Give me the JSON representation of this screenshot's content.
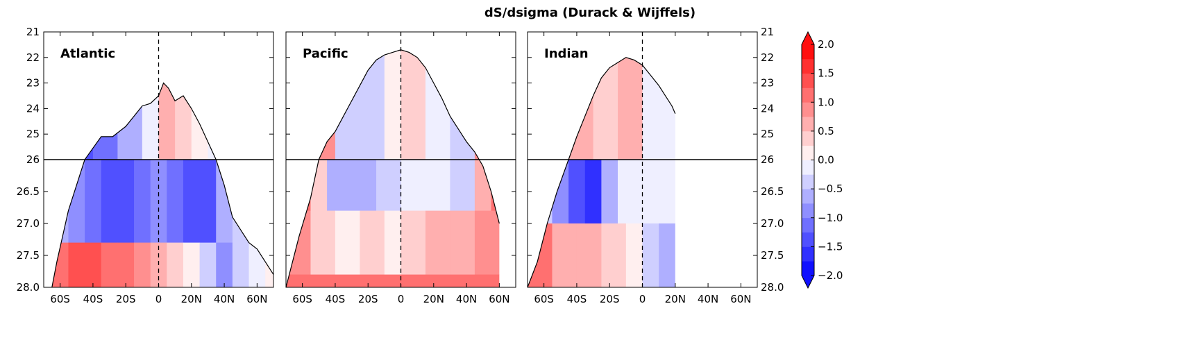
{
  "title": "dS/dsigma (Durack & Wijffels)",
  "chart_data": {
    "type": "filled-contour",
    "title": "dS/dsigma (Durack & Wijffels)",
    "x_ticks": [
      "60S",
      "40S",
      "20S",
      "0",
      "20N",
      "40N",
      "60N"
    ],
    "x_values": [
      -60,
      -40,
      -20,
      0,
      20,
      40,
      60
    ],
    "xlim": [
      -70,
      70
    ],
    "y_ticks_upper": [
      "21",
      "22",
      "23",
      "24",
      "25",
      "26"
    ],
    "y_ticks_lower": [
      "26.5",
      "27.0",
      "27.5",
      "28.0"
    ],
    "ylim_upper": [
      21,
      26
    ],
    "ylim_lower": [
      26,
      28
    ],
    "split_line_at": 26,
    "zero_line_at": 0,
    "panels": [
      {
        "name": "Atlantic",
        "surface": [
          [
            -65,
            28.0
          ],
          [
            -62,
            27.6
          ],
          [
            -55,
            26.8
          ],
          [
            -45,
            26.0
          ],
          [
            -35,
            25.1
          ],
          [
            -28,
            25.1
          ],
          [
            -20,
            24.7
          ],
          [
            -10,
            23.9
          ],
          [
            -5,
            23.8
          ],
          [
            0,
            23.5
          ],
          [
            3,
            23.0
          ],
          [
            6,
            23.2
          ],
          [
            10,
            23.7
          ],
          [
            15,
            23.5
          ],
          [
            20,
            24.0
          ],
          [
            25,
            24.6
          ],
          [
            30,
            25.3
          ],
          [
            35,
            26.0
          ],
          [
            40,
            26.4
          ],
          [
            45,
            26.9
          ],
          [
            50,
            27.1
          ],
          [
            55,
            27.3
          ],
          [
            60,
            27.4
          ],
          [
            65,
            27.6
          ],
          [
            70,
            27.8
          ]
        ],
        "cells": [
          [
            -65,
            -55,
            26.0,
            27.3,
            -0.7
          ],
          [
            -55,
            -45,
            26.0,
            27.3,
            -1.0
          ],
          [
            -45,
            -35,
            26.0,
            27.3,
            -1.2
          ],
          [
            -35,
            -25,
            26.0,
            27.3,
            -1.4
          ],
          [
            -25,
            -15,
            26.0,
            27.3,
            -1.3
          ],
          [
            -15,
            -5,
            26.0,
            27.3,
            -1.1
          ],
          [
            -5,
            5,
            26.0,
            27.3,
            -0.9
          ],
          [
            5,
            15,
            26.0,
            27.3,
            -1.1
          ],
          [
            15,
            25,
            26.0,
            27.3,
            -1.4
          ],
          [
            25,
            35,
            26.0,
            27.3,
            -1.3
          ],
          [
            35,
            45,
            26.0,
            27.3,
            -0.7
          ],
          [
            45,
            55,
            26.0,
            27.3,
            -0.3
          ],
          [
            55,
            65,
            26.0,
            27.3,
            -0.1
          ],
          [
            65,
            70,
            26.0,
            27.3,
            -0.1
          ],
          [
            -65,
            -55,
            27.3,
            28.0,
            1.0
          ],
          [
            -55,
            -45,
            27.3,
            28.0,
            1.4
          ],
          [
            -45,
            -35,
            27.3,
            28.0,
            1.3
          ],
          [
            -35,
            -25,
            27.3,
            28.0,
            1.2
          ],
          [
            -25,
            -15,
            27.3,
            28.0,
            1.0
          ],
          [
            -15,
            -5,
            27.3,
            28.0,
            0.9
          ],
          [
            -5,
            5,
            27.3,
            28.0,
            0.6
          ],
          [
            5,
            15,
            27.3,
            28.0,
            0.3
          ],
          [
            15,
            25,
            27.3,
            28.0,
            0.1
          ],
          [
            25,
            35,
            27.3,
            28.0,
            -0.4
          ],
          [
            35,
            45,
            27.3,
            28.0,
            -0.8
          ],
          [
            45,
            55,
            27.3,
            28.0,
            -0.4
          ],
          [
            55,
            65,
            27.3,
            28.0,
            -0.1
          ],
          [
            65,
            70,
            27.3,
            28.0,
            0.2
          ],
          [
            -65,
            -40,
            21,
            26.0,
            -1.3
          ],
          [
            -40,
            -25,
            21,
            26.0,
            -1.1
          ],
          [
            -25,
            -10,
            21,
            26.0,
            -0.7
          ],
          [
            -10,
            0,
            21,
            26.0,
            -0.2
          ],
          [
            0,
            10,
            21,
            26.0,
            0.5
          ],
          [
            10,
            20,
            21,
            26.0,
            0.3
          ],
          [
            20,
            30,
            21,
            26.0,
            0.1
          ],
          [
            30,
            40,
            21,
            26.0,
            -0.1
          ],
          [
            40,
            70,
            21,
            26.0,
            -0.1
          ]
        ]
      },
      {
        "name": "Pacific",
        "surface": [
          [
            -70,
            28.0
          ],
          [
            -62,
            27.2
          ],
          [
            -55,
            26.6
          ],
          [
            -50,
            26.0
          ],
          [
            -45,
            25.3
          ],
          [
            -40,
            24.9
          ],
          [
            -35,
            24.3
          ],
          [
            -30,
            23.7
          ],
          [
            -25,
            23.1
          ],
          [
            -20,
            22.5
          ],
          [
            -15,
            22.1
          ],
          [
            -10,
            21.9
          ],
          [
            -5,
            21.8
          ],
          [
            0,
            21.7
          ],
          [
            5,
            21.8
          ],
          [
            10,
            22.0
          ],
          [
            15,
            22.4
          ],
          [
            20,
            23.0
          ],
          [
            25,
            23.6
          ],
          [
            30,
            24.3
          ],
          [
            35,
            24.8
          ],
          [
            40,
            25.3
          ],
          [
            45,
            25.7
          ],
          [
            50,
            26.1
          ],
          [
            55,
            26.5
          ],
          [
            58,
            26.8
          ],
          [
            60,
            27.0
          ]
        ],
        "cells": [
          [
            -70,
            -55,
            26.0,
            26.8,
            1.2
          ],
          [
            -55,
            -45,
            26.0,
            26.8,
            0.4
          ],
          [
            -45,
            -30,
            26.0,
            26.8,
            -0.6
          ],
          [
            -30,
            -15,
            26.0,
            26.8,
            -0.7
          ],
          [
            -15,
            0,
            26.0,
            26.8,
            -0.3
          ],
          [
            0,
            15,
            26.0,
            26.8,
            -0.1
          ],
          [
            15,
            30,
            26.0,
            26.8,
            -0.2
          ],
          [
            30,
            45,
            26.0,
            26.8,
            -0.4
          ],
          [
            45,
            55,
            26.0,
            26.8,
            0.6
          ],
          [
            55,
            60,
            26.0,
            26.8,
            1.0
          ],
          [
            -70,
            -55,
            26.8,
            27.8,
            0.9
          ],
          [
            -55,
            -40,
            26.8,
            27.8,
            0.4
          ],
          [
            -40,
            -25,
            26.8,
            27.8,
            0.2
          ],
          [
            -25,
            -10,
            26.8,
            27.8,
            0.3
          ],
          [
            -10,
            0,
            26.8,
            27.8,
            0.2
          ],
          [
            0,
            15,
            26.8,
            27.8,
            0.3
          ],
          [
            15,
            30,
            26.8,
            27.8,
            0.6
          ],
          [
            30,
            45,
            26.8,
            27.8,
            0.7
          ],
          [
            45,
            60,
            26.8,
            27.8,
            0.8
          ],
          [
            -70,
            60,
            27.8,
            28.0,
            1.2
          ],
          [
            -70,
            -40,
            21,
            26.0,
            0.8
          ],
          [
            -40,
            -25,
            21,
            26.0,
            -0.5
          ],
          [
            -25,
            -10,
            21,
            26.0,
            -0.3
          ],
          [
            -10,
            0,
            21,
            26.0,
            0.2
          ],
          [
            0,
            15,
            21,
            26.0,
            0.3
          ],
          [
            15,
            30,
            21,
            26.0,
            -0.1
          ],
          [
            30,
            45,
            21,
            26.0,
            -0.4
          ],
          [
            45,
            60,
            21,
            26.0,
            0.9
          ]
        ]
      },
      {
        "name": "Indian",
        "surface": [
          [
            -70,
            28.0
          ],
          [
            -64,
            27.6
          ],
          [
            -58,
            27.0
          ],
          [
            -52,
            26.5
          ],
          [
            -45,
            26.0
          ],
          [
            -40,
            25.1
          ],
          [
            -35,
            24.3
          ],
          [
            -30,
            23.5
          ],
          [
            -25,
            22.8
          ],
          [
            -20,
            22.4
          ],
          [
            -15,
            22.2
          ],
          [
            -10,
            22.0
          ],
          [
            -5,
            22.1
          ],
          [
            0,
            22.3
          ],
          [
            5,
            22.7
          ],
          [
            10,
            23.1
          ],
          [
            15,
            23.6
          ],
          [
            18,
            23.9
          ],
          [
            20,
            24.2
          ]
        ],
        "cells": [
          [
            -70,
            -55,
            26.0,
            27.0,
            -0.3
          ],
          [
            -55,
            -45,
            26.0,
            27.0,
            -0.9
          ],
          [
            -45,
            -35,
            26.0,
            27.0,
            -1.3
          ],
          [
            -35,
            -25,
            26.0,
            27.0,
            -1.6
          ],
          [
            -25,
            -15,
            26.0,
            27.0,
            -0.6
          ],
          [
            -15,
            -5,
            26.0,
            27.0,
            -0.2
          ],
          [
            -5,
            5,
            26.0,
            27.0,
            -0.1
          ],
          [
            5,
            20,
            26.0,
            27.0,
            -0.2
          ],
          [
            -70,
            -55,
            27.0,
            28.0,
            1.0
          ],
          [
            -55,
            -40,
            27.0,
            28.0,
            0.7
          ],
          [
            -40,
            -25,
            27.0,
            28.0,
            0.5
          ],
          [
            -25,
            -10,
            27.0,
            28.0,
            0.3
          ],
          [
            -10,
            0,
            27.0,
            28.0,
            0.1
          ],
          [
            0,
            10,
            27.0,
            28.0,
            -0.4
          ],
          [
            10,
            20,
            27.0,
            28.0,
            -0.6
          ],
          [
            -70,
            -45,
            21,
            26.0,
            0.4
          ],
          [
            -45,
            -30,
            21,
            26.0,
            0.5
          ],
          [
            -30,
            -15,
            21,
            26.0,
            0.3
          ],
          [
            -15,
            0,
            21,
            26.0,
            0.5
          ],
          [
            0,
            20,
            21,
            26.0,
            -0.1
          ]
        ]
      }
    ],
    "colorbar": {
      "levels": [
        -2.0,
        -1.75,
        -1.5,
        -1.25,
        -1.0,
        -0.75,
        -0.5,
        -0.25,
        0.0,
        0.25,
        0.5,
        0.75,
        1.0,
        1.25,
        1.5,
        1.75,
        2.0
      ],
      "tick_labels": [
        "2.0",
        "1.5",
        "1.0",
        "0.5",
        "0.0",
        "−0.5",
        "−1.0",
        "−1.5",
        "−2.0"
      ],
      "tick_values": [
        2.0,
        1.5,
        1.0,
        0.5,
        0.0,
        -0.5,
        -1.0,
        -1.5,
        -2.0
      ],
      "colormap": "bwr",
      "extend": "both"
    }
  }
}
